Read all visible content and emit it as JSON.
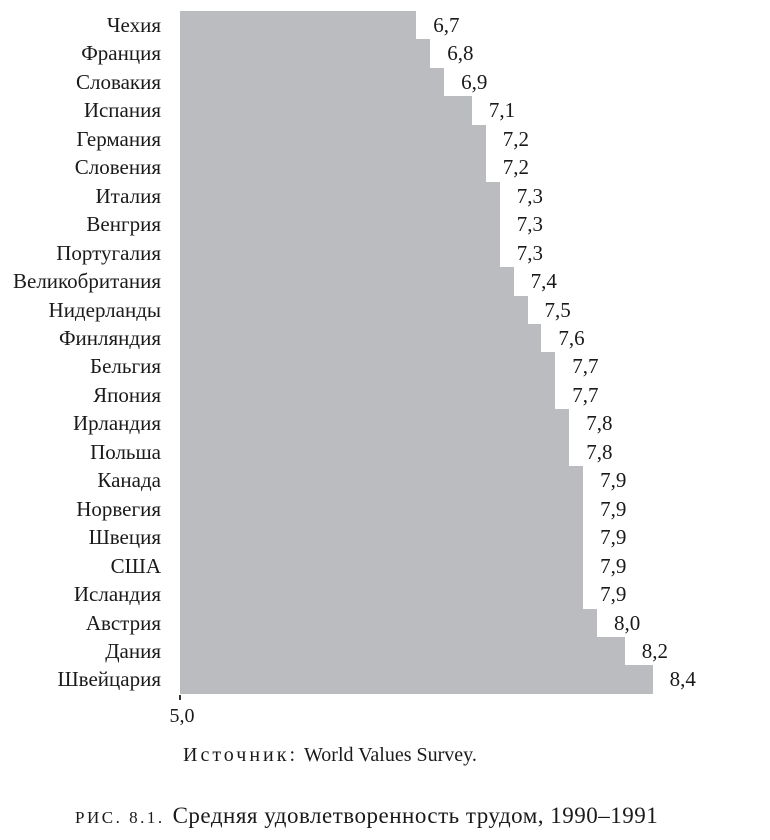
{
  "chart_data": {
    "type": "bar",
    "orientation": "horizontal",
    "title": "Средняя удовлетворенность трудом, 1990–1991",
    "source": "Источник: World Values Survey.",
    "categories": [
      "Чехия",
      "Франция",
      "Словакия",
      "Испания",
      "Германия",
      "Словения",
      "Италия",
      "Венгрия",
      "Португалия",
      "Великобритания",
      "Нидерланды",
      "Финляндия",
      "Бельгия",
      "Япония",
      "Ирландия",
      "Польша",
      "Канада",
      "Норвегия",
      "Швеция",
      "США",
      "Исландия",
      "Австрия",
      "Дания",
      "Швейцария"
    ],
    "values": [
      6.7,
      6.8,
      6.9,
      7.1,
      7.2,
      7.2,
      7.3,
      7.3,
      7.3,
      7.4,
      7.5,
      7.6,
      7.7,
      7.7,
      7.8,
      7.8,
      7.9,
      7.9,
      7.9,
      7.9,
      7.9,
      8.0,
      8.2,
      8.4
    ],
    "value_labels": [
      "6,7",
      "6,8",
      "6,9",
      "7,1",
      "7,2",
      "7,2",
      "7,3",
      "7,3",
      "7,3",
      "7,4",
      "7,5",
      "7,6",
      "7,7",
      "7,7",
      "7,8",
      "7,8",
      "7,9",
      "7,9",
      "7,9",
      "7,9",
      "7,9",
      "8,0",
      "8,2",
      "8,4"
    ],
    "xlim": [
      5.0,
      8.5
    ],
    "x_ticks": [
      "5,0"
    ],
    "grid": false,
    "legend": false,
    "bar_color": "#bbbcbf"
  },
  "axis": {
    "origin_tick_label": "5,0"
  },
  "source": {
    "label": "Источник:",
    "text": "World Values Survey."
  },
  "caption": {
    "label": "РИС. 8.1.",
    "text": "Средняя удовлетворенность трудом, 1990–1991"
  }
}
